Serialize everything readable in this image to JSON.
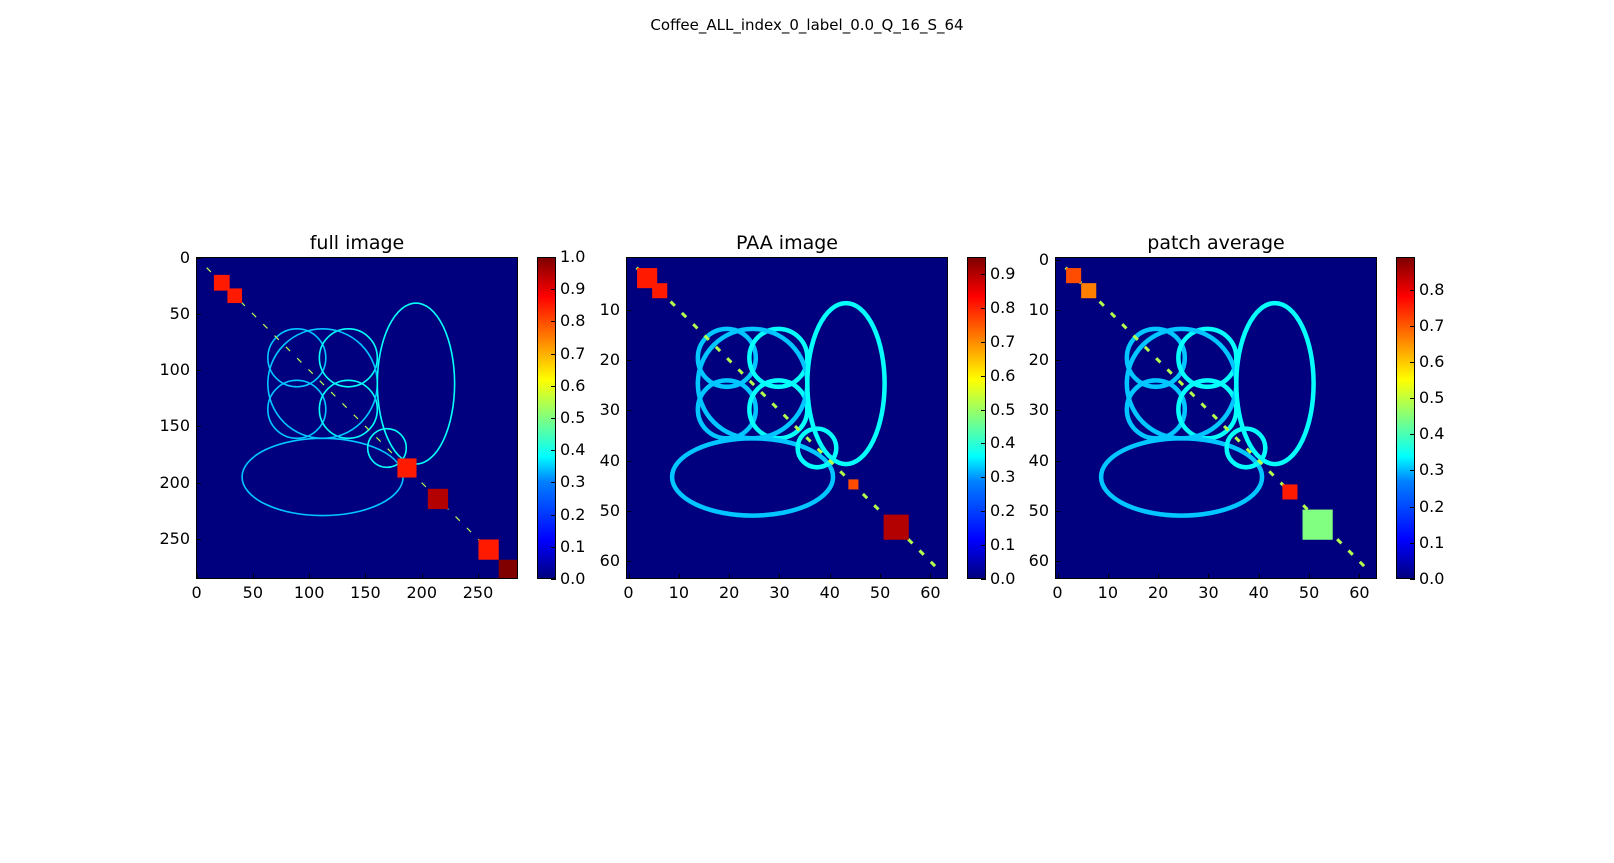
{
  "figure": {
    "suptitle": "Coffee_ALL_index_0_label_0.0_Q_16_S_64"
  },
  "chart_data": [
    {
      "type": "heatmap",
      "title": "full image",
      "colormap": "jet",
      "size": 286,
      "xticks": [
        0,
        50,
        100,
        150,
        200,
        250
      ],
      "yticks": [
        0,
        50,
        100,
        150,
        200,
        250
      ],
      "colorbar": {
        "min": 0.0,
        "max": 1.0,
        "ticks": [
          "0.0",
          "0.1",
          "0.2",
          "0.3",
          "0.4",
          "0.5",
          "0.6",
          "0.7",
          "0.8",
          "0.9",
          "1.0"
        ]
      },
      "high_blocks": [
        {
          "x": 15,
          "y": 15,
          "w": 14,
          "h": 14,
          "value": 0.85
        },
        {
          "x": 27,
          "y": 27,
          "w": 13,
          "h": 13,
          "value": 0.85
        },
        {
          "x": 178,
          "y": 178,
          "w": 17,
          "h": 17,
          "value": 0.85
        },
        {
          "x": 205,
          "y": 205,
          "w": 18,
          "h": 18,
          "value": 0.95
        },
        {
          "x": 250,
          "y": 250,
          "w": 18,
          "h": 18,
          "value": 0.85
        },
        {
          "x": 268,
          "y": 268,
          "w": 18,
          "h": 18,
          "value": 1.0
        }
      ]
    },
    {
      "type": "heatmap",
      "title": "PAA image",
      "colormap": "jet",
      "size": 64,
      "xticks": [
        0,
        10,
        20,
        30,
        40,
        50,
        60
      ],
      "yticks": [
        10,
        20,
        30,
        40,
        50,
        60
      ],
      "colorbar": {
        "min": 0.0,
        "max": 0.95,
        "ticks": [
          "0.0",
          "0.1",
          "0.2",
          "0.3",
          "0.4",
          "0.5",
          "0.6",
          "0.7",
          "0.8",
          "0.9"
        ]
      },
      "high_blocks": [
        {
          "x": 2,
          "y": 2,
          "w": 4,
          "h": 4,
          "value": 0.85
        },
        {
          "x": 5,
          "y": 5,
          "w": 3,
          "h": 3,
          "value": 0.85
        },
        {
          "x": 51,
          "y": 51,
          "w": 5,
          "h": 5,
          "value": 0.95
        },
        {
          "x": 44,
          "y": 44,
          "w": 2,
          "h": 2,
          "value": 0.8
        }
      ]
    },
    {
      "type": "heatmap",
      "title": "patch average",
      "colormap": "jet",
      "size": 64,
      "xticks": [
        0,
        10,
        20,
        30,
        40,
        50,
        60
      ],
      "yticks": [
        0,
        10,
        20,
        30,
        40,
        50,
        60
      ],
      "colorbar": {
        "min": 0.0,
        "max": 0.89,
        "ticks": [
          "0.0",
          "0.1",
          "0.2",
          "0.3",
          "0.4",
          "0.5",
          "0.6",
          "0.7",
          "0.8"
        ]
      },
      "high_blocks": [
        {
          "x": 2,
          "y": 2,
          "w": 3,
          "h": 3,
          "value": 0.8
        },
        {
          "x": 5,
          "y": 5,
          "w": 3,
          "h": 3,
          "value": 0.75
        },
        {
          "x": 45,
          "y": 45,
          "w": 3,
          "h": 3,
          "value": 0.85
        },
        {
          "x": 49,
          "y": 50,
          "w": 6,
          "h": 6,
          "value": 0.5
        }
      ]
    }
  ]
}
